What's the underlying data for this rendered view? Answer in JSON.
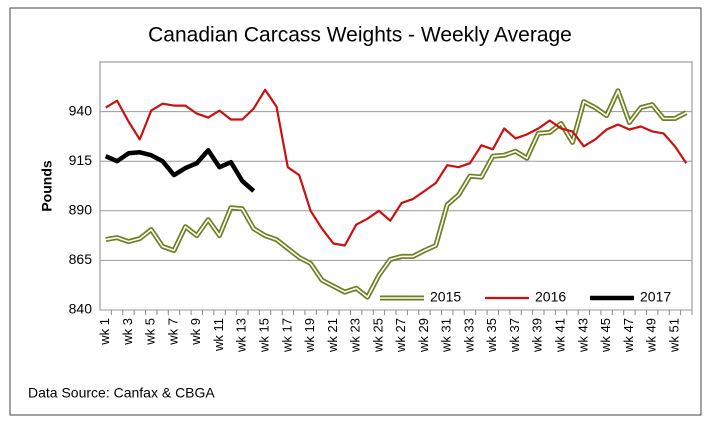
{
  "chart_data": {
    "type": "line",
    "title": "Canadian Carcass Weights -  Weekly Average",
    "ylabel": "Pounds",
    "source": "Data Source: Canfax & CBGA",
    "categories": [
      "wk 1",
      null,
      "wk 3",
      null,
      "wk 5",
      null,
      "wk 7",
      null,
      "wk 9",
      null,
      "wk 11",
      null,
      "wk 13",
      null,
      "wk 15",
      null,
      "wk 17",
      null,
      "wk 19",
      null,
      "wk 21",
      null,
      "wk 23",
      null,
      "wk 25",
      null,
      "wk 27",
      null,
      "wk 29",
      null,
      "wk 31",
      null,
      "wk 33",
      null,
      "wk 35",
      null,
      "wk 37",
      null,
      "wk 39",
      null,
      "wk 41",
      null,
      "wk 43",
      null,
      "wk 45",
      null,
      "wk 47",
      null,
      "wk 49",
      null,
      "wk 51",
      null
    ],
    "series": [
      {
        "name": "2015",
        "color": "#6e7f1f",
        "style": "double",
        "values": [
          875.5,
          876.5,
          874.5,
          876,
          880.5,
          872,
          870,
          882,
          877.5,
          885.5,
          877.5,
          891.5,
          891,
          881,
          877.5,
          875.5,
          871,
          866.5,
          863.5,
          855,
          852,
          849,
          851,
          846.5,
          857.5,
          865.5,
          867,
          867,
          870,
          872.5,
          893,
          898,
          907.5,
          907,
          917.5,
          918,
          920,
          916.5,
          929,
          929.5,
          934,
          924.5,
          945,
          942,
          938,
          950.5,
          934.5,
          942,
          943.5,
          936.5,
          936.5,
          939.5
        ]
      },
      {
        "name": "2016",
        "color": "#cc1010",
        "style": "solid",
        "values": [
          942,
          945.5,
          935,
          926,
          940.5,
          944,
          943,
          943,
          939,
          937,
          940.5,
          936,
          936,
          941.5,
          951,
          942.5,
          912,
          908,
          890,
          881,
          873.5,
          872.5,
          883,
          886,
          890,
          885,
          894,
          896,
          900,
          904,
          913,
          912,
          914,
          923,
          921,
          931.5,
          926.5,
          928.5,
          931.5,
          935.5,
          931.5,
          930,
          922.5,
          926,
          931,
          933.5,
          931,
          932.5,
          930,
          929,
          922.5,
          914
        ]
      },
      {
        "name": "2017",
        "color": "#000000",
        "style": "bold",
        "values": [
          917.5,
          915,
          919,
          919.5,
          918,
          915,
          908,
          911.5,
          914,
          920.5,
          912,
          914.5,
          905,
          900,
          null,
          null,
          null,
          null,
          null,
          null,
          null,
          null,
          null,
          null,
          null,
          null,
          null,
          null,
          null,
          null,
          null,
          null,
          null,
          null,
          null,
          null,
          null,
          null,
          null,
          null,
          null,
          null,
          null,
          null,
          null,
          null,
          null,
          null,
          null,
          null,
          null,
          null
        ]
      }
    ],
    "ylim": [
      840,
      965
    ],
    "yticks": [
      840,
      865,
      890,
      915,
      940
    ],
    "grid": true,
    "legend": "bottom"
  }
}
